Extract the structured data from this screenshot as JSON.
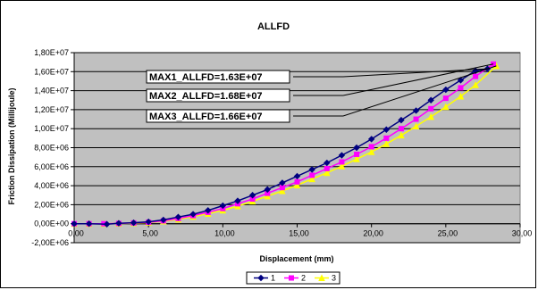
{
  "chart_data": {
    "type": "scatter",
    "title": "ALLFD",
    "xlabel": "Displacement (mm)",
    "ylabel": "Friction Dissipation (Millijoule)",
    "xlim": [
      0,
      30
    ],
    "ylim": [
      -2000000,
      18000000
    ],
    "x_ticks": [
      0,
      5,
      10,
      15,
      20,
      25,
      30
    ],
    "x_tick_labels": [
      "0,00",
      "5,00",
      "10,00",
      "15,00",
      "20,00",
      "25,00",
      "30,00"
    ],
    "y_ticks": [
      -2000000,
      0,
      2000000,
      4000000,
      6000000,
      8000000,
      10000000,
      12000000,
      14000000,
      16000000,
      18000000
    ],
    "y_tick_labels": [
      "-2,00E+06",
      "0,00E+00",
      "2,00E+06",
      "4,00E+06",
      "6,00E+06",
      "8,00E+06",
      "1,00E+07",
      "1,20E+07",
      "1,40E+07",
      "1,60E+07",
      "1,80E+07"
    ],
    "grid": true,
    "plot_background": "#c0c0c0",
    "legend_position": "bottom",
    "series": [
      {
        "name": "1",
        "color": "#000080",
        "marker": "diamond",
        "x": [
          0,
          1,
          2.2,
          3,
          4,
          5,
          6,
          7,
          8,
          9,
          10,
          11,
          12,
          13,
          14,
          15,
          16,
          17,
          18,
          19,
          20,
          21,
          22,
          23,
          24,
          25,
          26,
          27,
          27.8
        ],
        "y": [
          0,
          0,
          -50000,
          50000,
          100000,
          200000,
          400000,
          700000,
          1000000,
          1400000,
          1900000,
          2400000,
          3000000,
          3600000,
          4300000,
          5000000,
          5700000,
          6400000,
          7200000,
          8000000,
          8900000,
          9900000,
          10900000,
          11900000,
          13000000,
          14100000,
          15100000,
          16100000,
          16300000
        ]
      },
      {
        "name": "2",
        "color": "#ff00ff",
        "marker": "square",
        "x": [
          0,
          1,
          2,
          3,
          4,
          5,
          6,
          7,
          8,
          9,
          10,
          11,
          12,
          13,
          14,
          15,
          16,
          17,
          18,
          19,
          20,
          21,
          22,
          23,
          24,
          25,
          26,
          27,
          28.2
        ],
        "y": [
          0,
          0,
          0,
          30000,
          80000,
          150000,
          300000,
          550000,
          850000,
          1200000,
          1600000,
          2100000,
          2600000,
          3200000,
          3800000,
          4400000,
          5100000,
          5800000,
          6500000,
          7300000,
          8100000,
          9000000,
          10000000,
          11000000,
          12100000,
          13200000,
          14300000,
          15500000,
          16800000
        ]
      },
      {
        "name": "3",
        "color": "#ffff00",
        "marker": "triangle",
        "x": [
          0,
          1,
          2,
          3,
          4,
          5,
          6,
          7,
          8,
          9,
          10,
          11,
          12,
          13,
          14,
          15,
          16,
          17,
          18,
          19,
          20,
          21,
          22,
          23,
          24,
          25,
          26,
          27,
          28.4
        ],
        "y": [
          0,
          0,
          0,
          20000,
          60000,
          120000,
          250000,
          450000,
          750000,
          1050000,
          1400000,
          1850000,
          2350000,
          2900000,
          3450000,
          4050000,
          4700000,
          5350000,
          6050000,
          6800000,
          7550000,
          8400000,
          9300000,
          10250000,
          11250000,
          12300000,
          13400000,
          14600000,
          16600000
        ]
      }
    ],
    "annotations": [
      {
        "text": "MAX1_ALLFD=1.63E+07",
        "series": 0
      },
      {
        "text": "MAX2_ALLFD=1.68E+07",
        "series": 1
      },
      {
        "text": "MAX3_ALLFD=1.66E+07",
        "series": 2
      }
    ]
  }
}
